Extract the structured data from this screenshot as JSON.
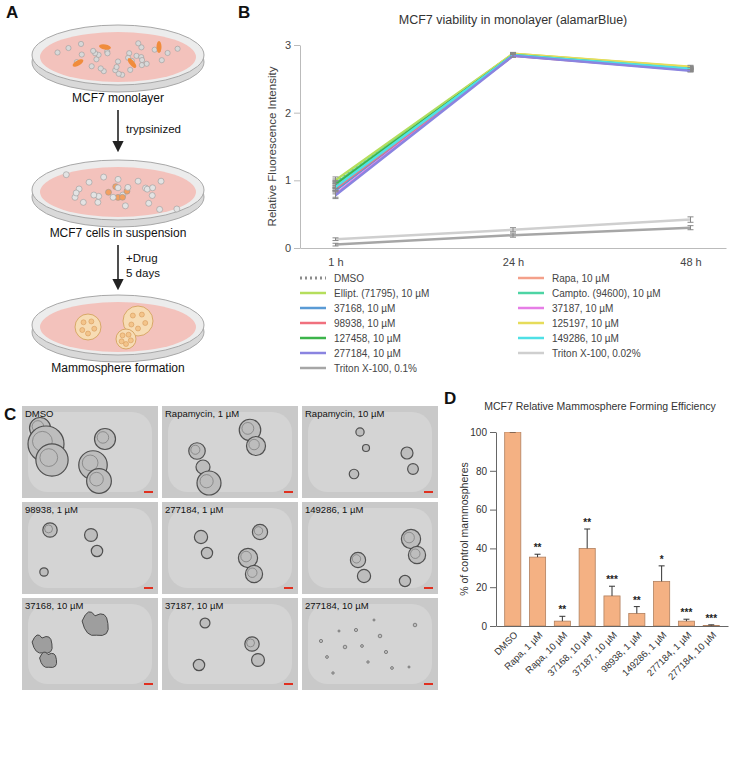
{
  "panel_labels": [
    "A",
    "B",
    "C",
    "D"
  ],
  "diagram": {
    "steps": [
      "MCF7 monolayer",
      "MCF7 cells in suspension",
      "Mammosphere formation"
    ],
    "arrows": [
      [
        "trypsinized"
      ],
      [
        "+Drug",
        "5 days"
      ]
    ]
  },
  "images": {
    "labels": [
      "DMSO",
      "Rapamycin, 1 µM",
      "Rapamycin, 10 µM",
      "98938, 1 µM",
      "277184, 1 µM",
      "149286, 1 µM",
      "37168, 10 µM",
      "37187, 10 µM",
      "277184, 10 µM"
    ]
  },
  "chart_data": [
    {
      "type": "line",
      "title": "MCF7 viability in monolayer (alamarBlue)",
      "y_label": "Relative Fluorescence Intensity",
      "categories": [
        "1 h",
        "24 h",
        "48 h"
      ],
      "ylim": [
        0,
        3
      ],
      "yticks": [
        0,
        1,
        2,
        3
      ],
      "grid": false,
      "legend": "bottom",
      "series": [
        {
          "name": "DMSO",
          "color": "#8c8c8c",
          "line_style": "dotted",
          "values": [
            0.97,
            2.86,
            2.65
          ],
          "errors": [
            0.05,
            0.02,
            0.02
          ]
        },
        {
          "name": "Rapa, 10 µM",
          "color": "#f4a08a",
          "values": [
            0.92,
            2.86,
            2.66
          ],
          "errors": [
            0.05,
            0.02,
            0.02
          ]
        },
        {
          "name": "Ellipt. (71795), 10 µM",
          "color": "#b5de5c",
          "values": [
            1.0,
            2.87,
            2.67
          ],
          "errors": [
            0.05,
            0.02,
            0.02
          ]
        },
        {
          "name": "Campto. (94600), 10 µM",
          "color": "#4dd4a4",
          "values": [
            0.95,
            2.86,
            2.66
          ],
          "errors": [
            0.05,
            0.02,
            0.02
          ]
        },
        {
          "name": "37168, 10 µM",
          "color": "#5a9bd5",
          "values": [
            0.85,
            2.85,
            2.63
          ],
          "errors": [
            0.05,
            0.02,
            0.02
          ]
        },
        {
          "name": "37187, 10 µM",
          "color": "#e67ee6",
          "values": [
            0.8,
            2.85,
            2.64
          ],
          "errors": [
            0.05,
            0.02,
            0.02
          ]
        },
        {
          "name": "98938, 10 µM",
          "color": "#f0707e",
          "values": [
            0.88,
            2.84,
            2.63
          ],
          "errors": [
            0.05,
            0.02,
            0.02
          ]
        },
        {
          "name": "125197, 10 µM",
          "color": "#e6dc5a",
          "values": [
            0.93,
            2.87,
            2.68
          ],
          "errors": [
            0.05,
            0.02,
            0.02
          ]
        },
        {
          "name": "127458, 10 µM",
          "color": "#3cb44b",
          "values": [
            0.94,
            2.85,
            2.64
          ],
          "errors": [
            0.05,
            0.02,
            0.02
          ]
        },
        {
          "name": "149286, 10 µM",
          "color": "#4fe0e6",
          "values": [
            0.9,
            2.85,
            2.65
          ],
          "errors": [
            0.05,
            0.02,
            0.02
          ]
        },
        {
          "name": "277184, 10 µM",
          "color": "#8a84e0",
          "values": [
            0.78,
            2.84,
            2.62
          ],
          "errors": [
            0.05,
            0.02,
            0.02
          ]
        },
        {
          "name": "Triton X-100, 0.02%",
          "color": "#cfcfcf",
          "values": [
            0.13,
            0.27,
            0.42
          ],
          "errors": [
            0.02,
            0.03,
            0.04
          ]
        },
        {
          "name": "Triton X-100, 0.1%",
          "color": "#a6a6a6",
          "values": [
            0.05,
            0.19,
            0.3
          ],
          "errors": [
            0.02,
            0.03,
            0.03
          ]
        }
      ]
    },
    {
      "type": "bar",
      "title": "MCF7 Relative Mammosphere Forming Efficiency",
      "y_label": "% of control mammospheres",
      "categories": [
        "DMSO",
        "Rapa, 1 µM",
        "Rapa, 10 µM",
        "37168, 10 µM",
        "37187, 10 µM",
        "98938, 1 µM",
        "149286, 1 µM",
        "277184, 1 µM",
        "277184, 10 µM"
      ],
      "values": [
        100,
        35.5,
        2.5,
        40,
        15.5,
        6.5,
        23,
        2.5,
        0.3
      ],
      "errors": [
        0,
        1.5,
        2.5,
        10,
        5,
        3.5,
        8,
        1,
        0.3
      ],
      "significance": [
        null,
        "**",
        "**",
        "**",
        "***",
        "**",
        "*",
        "***",
        "***"
      ],
      "color": "#f4b183",
      "ylim": [
        0,
        100
      ],
      "yticks": [
        0,
        20,
        40,
        60,
        80,
        100
      ],
      "grid": false
    }
  ]
}
